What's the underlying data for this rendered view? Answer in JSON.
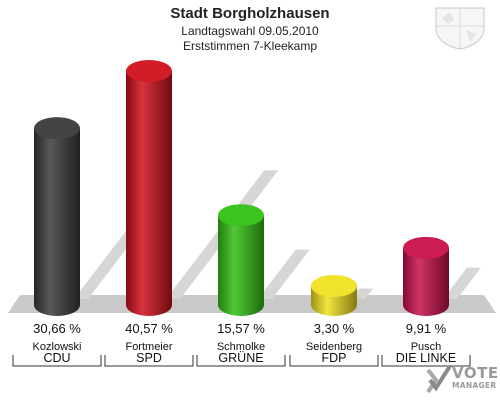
{
  "header": {
    "title": "Stadt Borgholzhausen",
    "subtitle1": "Landtagswahl 09.05.2010",
    "subtitle2": "Erststimmen 7-Kleekamp"
  },
  "chart_data": {
    "type": "bar",
    "categories": [
      "CDU",
      "SPD",
      "GRÜNE",
      "FDP",
      "DIE LINKE"
    ],
    "candidates": [
      "Kozlowski",
      "Fortmeier",
      "Schmolke",
      "Seidenberg",
      "Pusch"
    ],
    "values": [
      30.66,
      40.57,
      15.57,
      3.3,
      9.91
    ],
    "value_labels": [
      "30,66 %",
      "40,57 %",
      "15,57 %",
      "3,30 %",
      "9,91 %"
    ],
    "colors": [
      "#3a3a3a",
      "#d0101c",
      "#33c014",
      "#f0e020",
      "#c8104a"
    ],
    "ylim": [
      0,
      45
    ]
  },
  "logo": {
    "line1": "VOTE",
    "line2": "MANAGER"
  }
}
